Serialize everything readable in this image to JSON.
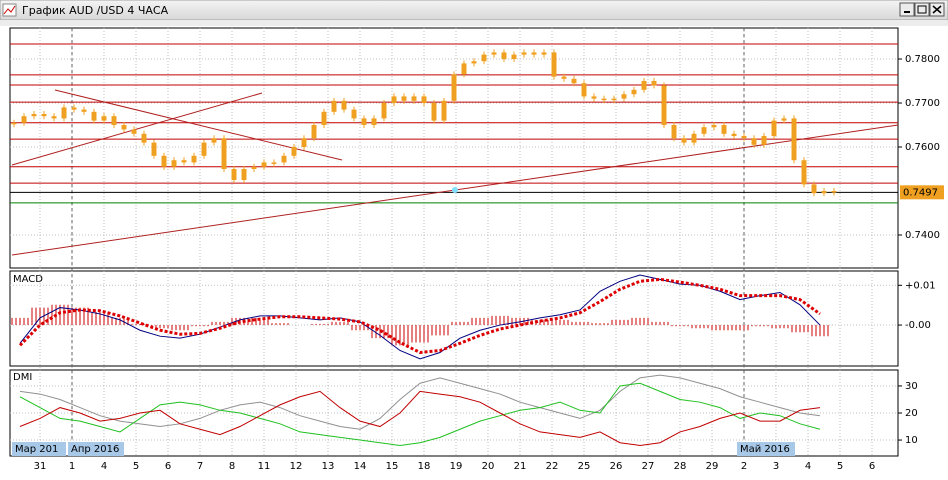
{
  "window": {
    "title": "График AUD /USD  4 ЧАСА"
  },
  "axis": {
    "categories": [
      "31",
      "1",
      "4",
      "5",
      "6",
      "7",
      "8",
      "11",
      "12",
      "13",
      "14",
      "15",
      "18",
      "19",
      "20",
      "21",
      "22",
      "25",
      "26",
      "27",
      "28",
      "29",
      "2",
      "3",
      "4",
      "5",
      "6"
    ],
    "month_labels": [
      "Мар 201",
      "Апр 2016",
      "Май 2016"
    ]
  },
  "chart_data": [
    {
      "type": "candlestick",
      "color": "#f0a020",
      "ylim": [
        0.7325,
        0.78705
      ],
      "yticks": [
        {
          "value": 0.78,
          "label": "0.7800"
        },
        {
          "value": 0.77,
          "label": "0.7700"
        },
        {
          "value": 0.76,
          "label": "0.7600"
        },
        {
          "value": 0.74,
          "label": "0.7400"
        }
      ],
      "last": 0.7497,
      "levels": [
        0.7834,
        0.7764,
        0.7741,
        0.7702,
        0.7655,
        0.7618,
        0.7555,
        0.7518
      ],
      "level_color": "#c00000",
      "support": 0.7473,
      "support_color": "#008000",
      "values": [
        0.7655,
        0.767,
        0.7675,
        0.767,
        0.7665,
        0.769,
        0.7685,
        0.768,
        0.766,
        0.767,
        0.765,
        0.764,
        0.763,
        0.761,
        0.758,
        0.7555,
        0.757,
        0.7565,
        0.758,
        0.761,
        0.762,
        0.755,
        0.7525,
        0.755,
        0.7555,
        0.7565,
        0.7565,
        0.758,
        0.76,
        0.762,
        0.765,
        0.768,
        0.7705,
        0.7685,
        0.7665,
        0.765,
        0.7665,
        0.77,
        0.7715,
        0.7705,
        0.7715,
        0.77,
        0.766,
        0.7705,
        0.7765,
        0.779,
        0.7795,
        0.781,
        0.7815,
        0.78,
        0.781,
        0.7815,
        0.781,
        0.7815,
        0.776,
        0.7755,
        0.7745,
        0.7715,
        0.771,
        0.771,
        0.771,
        0.772,
        0.773,
        0.775,
        0.774,
        0.765,
        0.762,
        0.761,
        0.763,
        0.7645,
        0.765,
        0.763,
        0.7625,
        0.762,
        0.7605,
        0.7625,
        0.766,
        0.7665,
        0.757,
        0.7515,
        0.7495,
        0.75,
        0.7497
      ]
    },
    {
      "type": "macd",
      "title": "MACD",
      "ylim": [
        -0.0103,
        0.0136
      ],
      "yticks": [
        {
          "value": 0.01,
          "label": "+0.01"
        },
        {
          "value": 0,
          "label": "-0.00"
        }
      ],
      "histogram": {
        "color": "#cc0000",
        "values": [
          0.0018,
          0.0044,
          0.0051,
          0.0044,
          0.0033,
          0.0018,
          0.0003,
          -0.0008,
          -0.0013,
          -0.0003,
          0.0008,
          0.0018,
          0.0018,
          0.0005,
          0,
          0.0003,
          0.0008,
          -0.0013,
          -0.0033,
          -0.0051,
          -0.0044,
          -0.0026,
          0.0008,
          0.0018,
          0.0023,
          0.0018,
          0.0013,
          0.0013,
          0.0008,
          0.0005,
          0.0013,
          0.0018,
          0.0008,
          -0.0003,
          -0.0008,
          -0.0013,
          -0.0013,
          -0.0003,
          -0.0008,
          -0.0018,
          -0.0028
        ]
      },
      "series": [
        {
          "color": "#000080",
          "values": [
            -0.0046,
            0.0018,
            0.0044,
            0.0038,
            0.0028,
            0.0013,
            -0.0013,
            -0.0028,
            -0.0033,
            -0.0023,
            -0.0005,
            0.0013,
            0.0023,
            0.0023,
            0.0018,
            0.0013,
            0.0018,
            0.0008,
            -0.0026,
            -0.0064,
            -0.0085,
            -0.0069,
            -0.0033,
            -0.0013,
            0,
            0.0008,
            0.0018,
            0.0026,
            0.0038,
            0.0085,
            0.011,
            0.0126,
            0.0115,
            0.0103,
            0.01,
            0.0085,
            0.0064,
            0.0074,
            0.0082,
            0.0051,
            0
          ]
        },
        {
          "color": "#dd0000",
          "dotted": true,
          "values": [
            -0.0051,
            0,
            0.0031,
            0.0038,
            0.0036,
            0.0023,
            0.0005,
            -0.0013,
            -0.0023,
            -0.0021,
            -0.0008,
            0.0008,
            0.0015,
            0.0021,
            0.0021,
            0.0018,
            0.0015,
            0.0008,
            -0.0013,
            -0.0044,
            -0.0069,
            -0.0064,
            -0.0046,
            -0.0026,
            -0.001,
            0,
            0.001,
            0.0018,
            0.0031,
            0.0059,
            0.009,
            0.011,
            0.0115,
            0.0108,
            0.01,
            0.009,
            0.0074,
            0.0074,
            0.0074,
            0.0064,
            0.0028
          ]
        }
      ]
    },
    {
      "type": "line",
      "title": "DMI",
      "ylim": [
        4.1,
        35.9
      ],
      "yticks": [
        30,
        20,
        10
      ],
      "series": [
        {
          "color": "#909090",
          "values": [
            28,
            27,
            25,
            22,
            19,
            17,
            16,
            15,
            16,
            18,
            21,
            23,
            24,
            22,
            19,
            17,
            15,
            14,
            18,
            25,
            31,
            33,
            31,
            29,
            27,
            24,
            22,
            20,
            18,
            21,
            28,
            33,
            34,
            33,
            31,
            29,
            26,
            24,
            22,
            20,
            19
          ]
        },
        {
          "color": "#20c020",
          "values": [
            26,
            22,
            18,
            17,
            15,
            13,
            18,
            23,
            24,
            23,
            21,
            20,
            18,
            16,
            13,
            12,
            11,
            10,
            9,
            8,
            9,
            11,
            14,
            17,
            19,
            21,
            22,
            24,
            21,
            20,
            30,
            31,
            28,
            25,
            24,
            22,
            18,
            20,
            19,
            16,
            14
          ]
        },
        {
          "color": "#c00000",
          "values": [
            15,
            18,
            22,
            20,
            17,
            18,
            20,
            21,
            16,
            14,
            12,
            15,
            19,
            23,
            26,
            28,
            22,
            17,
            15,
            20,
            28,
            27,
            26,
            24,
            20,
            16,
            13,
            12,
            11,
            13,
            9,
            8,
            9,
            13,
            15,
            18,
            20,
            17,
            17,
            21,
            22
          ]
        }
      ]
    }
  ]
}
